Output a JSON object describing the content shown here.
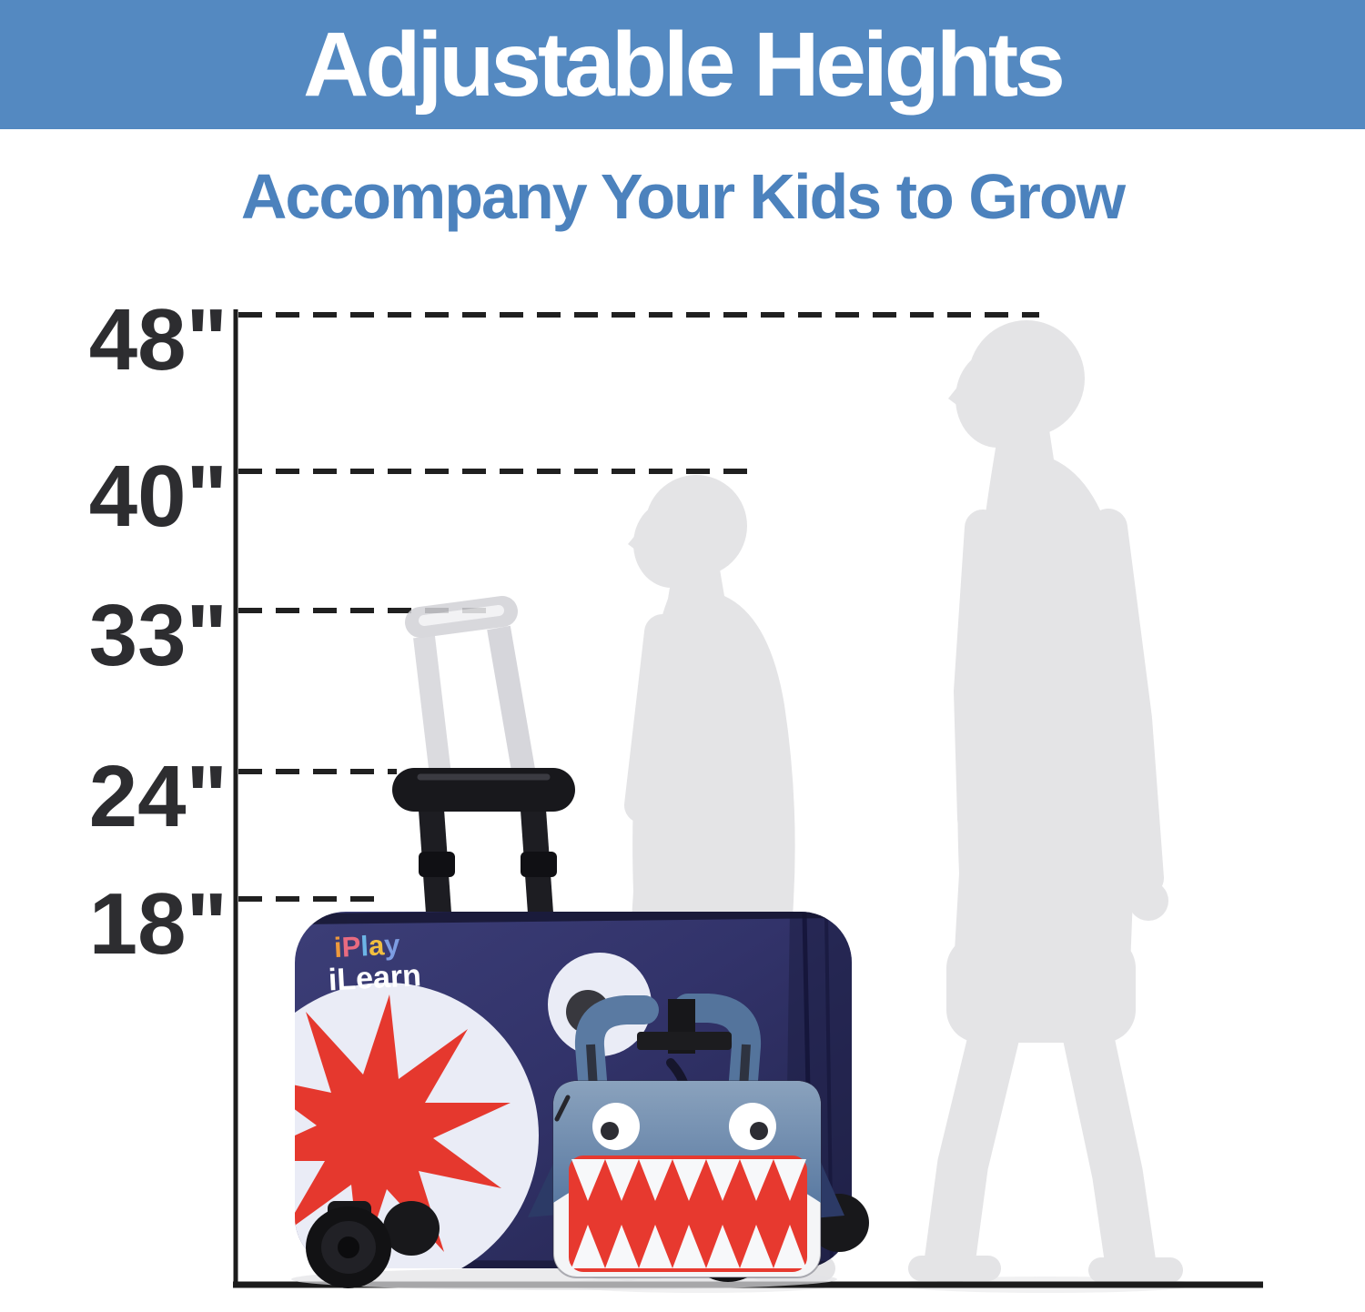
{
  "banner": {
    "title": "Adjustable Heights"
  },
  "subtitle": {
    "text": "Accompany Your Kids to Grow"
  },
  "height_scale": {
    "unit": "inches",
    "markers": [
      {
        "label": "48\"",
        "value": 48
      },
      {
        "label": "40\"",
        "value": 40
      },
      {
        "label": "33\"",
        "value": 33
      },
      {
        "label": "24\"",
        "value": 24
      },
      {
        "label": "18\"",
        "value": 18
      }
    ]
  },
  "suitcase": {
    "brand_line2": "iLearn",
    "brand_letters": [
      {
        "ch": "i",
        "color": "#ef9a3c"
      },
      {
        "ch": "P",
        "color": "#e96b80"
      },
      {
        "ch": "l",
        "color": "#6cb5e6"
      },
      {
        "ch": "a",
        "color": "#f2bf3f"
      },
      {
        "ch": "y",
        "color": "#7d9de2"
      }
    ],
    "body_color": "#32336a",
    "mouth_color": "#eaecf6",
    "starburst_color": "#e5382e",
    "handle_color": "#18181c"
  },
  "backpack": {
    "body_color": "#5a7aa2",
    "mouth_color": "#e7392f",
    "teeth_color": "#f7f8fa",
    "fin_color": "#2c3a66"
  },
  "figures": {
    "left": "shorter child silhouette",
    "right": "taller child silhouette",
    "color": "#e4e4e6"
  },
  "colors": {
    "banner_bg": "#5489c1",
    "subtitle_text": "#4c82bd",
    "marker_label": "#2d2d30",
    "dashed_line": "#202020"
  }
}
